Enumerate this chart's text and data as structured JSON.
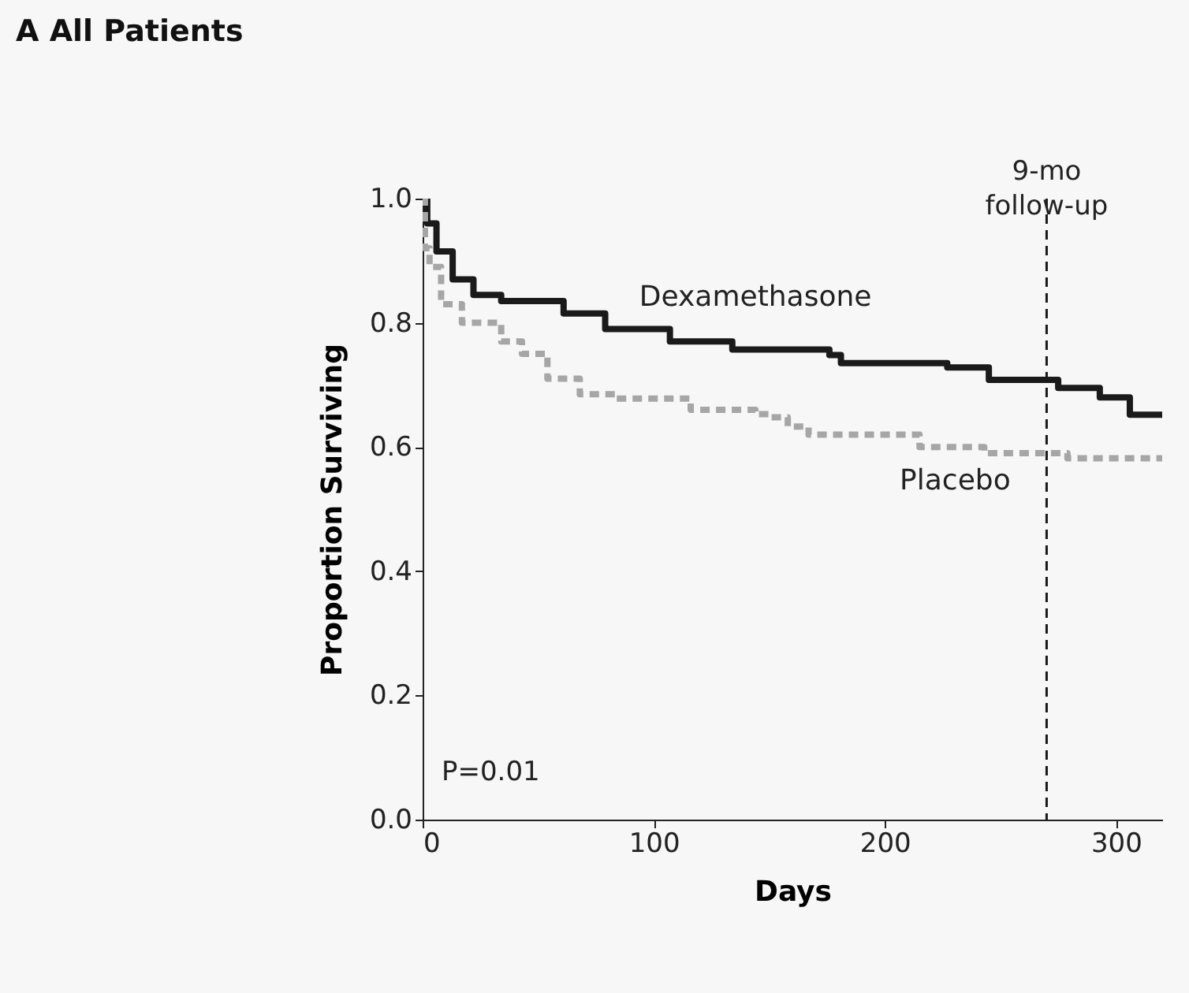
{
  "chart_data": {
    "type": "step",
    "title": "A All Patients",
    "xlabel": "Days",
    "ylabel": "Proportion Surviving",
    "xlim": [
      0,
      320
    ],
    "xticks": [
      0,
      100,
      200,
      300
    ],
    "ylim": [
      0,
      1
    ],
    "yticks": [
      {
        "value": 0,
        "label": "0.0"
      },
      {
        "value": 0.2,
        "label": "0.2"
      },
      {
        "value": 0.4,
        "label": "0.4"
      },
      {
        "value": 0.6,
        "label": "0.6"
      },
      {
        "value": 0.8,
        "label": "0.8"
      },
      {
        "value": 1,
        "label": "1.0"
      }
    ],
    "grid": false,
    "series": [
      {
        "name": "Dexamethasone",
        "color": "#1a1a1a",
        "line_style": "solid",
        "x": [
          0,
          2,
          6,
          13,
          22,
          34,
          61,
          79,
          107,
          134,
          176,
          181,
          227,
          245,
          268,
          275,
          293,
          306,
          320
        ],
        "values": [
          1.0,
          0.96,
          0.915,
          0.87,
          0.845,
          0.835,
          0.815,
          0.79,
          0.77,
          0.757,
          0.748,
          0.735,
          0.728,
          0.708,
          0.708,
          0.695,
          0.68,
          0.652,
          0.652
        ]
      },
      {
        "name": "Placebo",
        "color": "#a6a6a6",
        "line_style": "dashed",
        "x": [
          0,
          1,
          3,
          8,
          17,
          34,
          43,
          54,
          68,
          84,
          116,
          144,
          151,
          158,
          167,
          215,
          243,
          270,
          279,
          320
        ],
        "values": [
          1.0,
          0.92,
          0.89,
          0.83,
          0.8,
          0.77,
          0.75,
          0.71,
          0.685,
          0.678,
          0.66,
          0.653,
          0.648,
          0.633,
          0.62,
          0.6,
          0.59,
          0.59,
          0.582,
          0.582
        ]
      }
    ],
    "ref_lines": [
      {
        "axis": "x",
        "value": 270,
        "label": "9-mo\nfollow-up",
        "line_style": "dashed",
        "color": "#1a1a1a"
      }
    ],
    "annotations": [
      "P=0.01"
    ]
  }
}
